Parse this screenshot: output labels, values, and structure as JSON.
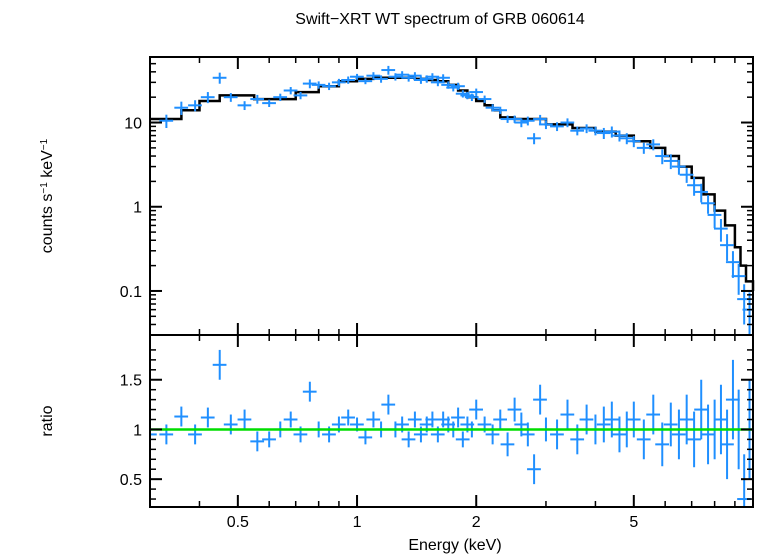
{
  "chart_data": {
    "type": "scatter",
    "title": "Swift−XRT WT spectrum of GRB 060614",
    "xlabel": "Energy (keV)",
    "x_scale": "log",
    "xlim": [
      0.3,
      10
    ],
    "x_ticks": [
      {
        "value": 0.5,
        "label": "0.5"
      },
      {
        "value": 1,
        "label": "1"
      },
      {
        "value": 2,
        "label": "2"
      },
      {
        "value": 5,
        "label": "5"
      }
    ],
    "colors": {
      "data": "#1f8fff",
      "model": "#000000",
      "reference": "#00dd00",
      "axes": "#000000"
    },
    "panels": [
      {
        "id": "spectrum",
        "ylabel_base": "counts s",
        "ylabel_exp1": "−1",
        "ylabel_mid": " keV",
        "ylabel_exp2": "−1",
        "y_scale": "log",
        "ylim": [
          0.03,
          60
        ],
        "y_ticks": [
          {
            "value": 0.1,
            "label": "0.1"
          },
          {
            "value": 1,
            "label": "1"
          },
          {
            "value": 10,
            "label": "10"
          }
        ],
        "model": {
          "name": "model",
          "x": [
            0.3,
            0.33,
            0.36,
            0.4,
            0.45,
            0.5,
            0.55,
            0.6,
            0.7,
            0.8,
            0.9,
            1.0,
            1.1,
            1.2,
            1.3,
            1.4,
            1.5,
            1.6,
            1.7,
            1.8,
            1.9,
            2.0,
            2.1,
            2.2,
            2.3,
            2.5,
            3.0,
            3.5,
            4.0,
            4.5,
            5.0,
            5.5,
            6.0,
            6.5,
            7.0,
            7.5,
            8.0,
            8.5,
            9.0,
            9.3,
            9.6,
            10.0
          ],
          "y": [
            11,
            11,
            14,
            18,
            21,
            21,
            19,
            19,
            23,
            27,
            31,
            33,
            34,
            34,
            34,
            33,
            32,
            31,
            28,
            24,
            20,
            18,
            16,
            14,
            11.5,
            11,
            9.5,
            8.6,
            7.8,
            7.0,
            6.0,
            5.0,
            4.0,
            3.0,
            2.2,
            1.4,
            0.9,
            0.6,
            0.33,
            0.2,
            0.13,
            0.1
          ]
        },
        "series": [
          {
            "name": "data",
            "x": [
              0.3,
              0.33,
              0.36,
              0.39,
              0.42,
              0.45,
              0.48,
              0.52,
              0.56,
              0.6,
              0.64,
              0.68,
              0.72,
              0.76,
              0.8,
              0.85,
              0.9,
              0.95,
              1.0,
              1.05,
              1.1,
              1.15,
              1.2,
              1.25,
              1.3,
              1.35,
              1.4,
              1.45,
              1.5,
              1.55,
              1.6,
              1.65,
              1.7,
              1.75,
              1.8,
              1.85,
              1.9,
              1.95,
              2.0,
              2.1,
              2.2,
              2.3,
              2.4,
              2.5,
              2.6,
              2.7,
              2.8,
              2.9,
              3.0,
              3.2,
              3.4,
              3.6,
              3.8,
              4.0,
              4.2,
              4.4,
              4.6,
              4.8,
              5.0,
              5.3,
              5.6,
              5.9,
              6.2,
              6.5,
              6.8,
              7.1,
              7.4,
              7.7,
              8.0,
              8.3,
              8.6,
              8.9,
              9.2,
              9.5,
              9.8
            ],
            "y": [
              10,
              10.5,
              15,
              16,
              20,
              34,
              20,
              16,
              19,
              17,
              20,
              24,
              21,
              29,
              28,
              27,
              30,
              32,
              35,
              31,
              36,
              33,
              42,
              35,
              37,
              34,
              36,
              32,
              33,
              35,
              30,
              34,
              28,
              26,
              27,
              22,
              21,
              20,
              23,
              19,
              15,
              14,
              11,
              11,
              10,
              10.5,
              6.5,
              11,
              9.5,
              9,
              10,
              8,
              8.5,
              8,
              7.5,
              7.8,
              7,
              6.5,
              6,
              5,
              5.5,
              4,
              3.5,
              3,
              2.4,
              1.8,
              1.5,
              1.1,
              0.8,
              0.55,
              0.35,
              0.22,
              0.15,
              0.08,
              0.06
            ],
            "err": [
              0.2,
              0.18,
              0.18,
              0.15,
              0.15,
              0.15,
              0.12,
              0.12,
              0.12,
              0.1,
              0.1,
              0.1,
              0.1,
              0.12,
              0.1,
              0.1,
              0.1,
              0.1,
              0.08,
              0.08,
              0.1,
              0.1,
              0.12,
              0.1,
              0.1,
              0.1,
              0.1,
              0.1,
              0.1,
              0.1,
              0.1,
              0.1,
              0.1,
              0.1,
              0.1,
              0.1,
              0.1,
              0.1,
              0.1,
              0.1,
              0.1,
              0.1,
              0.1,
              0.1,
              0.12,
              0.12,
              0.15,
              0.12,
              0.12,
              0.12,
              0.12,
              0.12,
              0.12,
              0.12,
              0.15,
              0.15,
              0.15,
              0.15,
              0.15,
              0.15,
              0.15,
              0.2,
              0.2,
              0.2,
              0.2,
              0.25,
              0.25,
              0.25,
              0.3,
              0.3,
              0.35,
              0.35,
              0.4,
              0.5,
              0.6
            ]
          }
        ]
      },
      {
        "id": "ratio",
        "ylabel": "ratio",
        "y_scale": "linear",
        "ylim": [
          0.22,
          1.95
        ],
        "y_ticks": [
          {
            "value": 0.5,
            "label": "0.5"
          },
          {
            "value": 1,
            "label": "1"
          },
          {
            "value": 1.5,
            "label": "1.5"
          }
        ],
        "reference": {
          "name": "unity",
          "y": 1
        },
        "series": [
          {
            "name": "data",
            "x": [
              0.3,
              0.33,
              0.36,
              0.39,
              0.42,
              0.45,
              0.48,
              0.52,
              0.56,
              0.6,
              0.64,
              0.68,
              0.72,
              0.76,
              0.8,
              0.85,
              0.9,
              0.95,
              1.0,
              1.05,
              1.1,
              1.15,
              1.2,
              1.25,
              1.3,
              1.35,
              1.4,
              1.45,
              1.5,
              1.55,
              1.6,
              1.65,
              1.7,
              1.75,
              1.8,
              1.85,
              1.9,
              1.95,
              2.0,
              2.1,
              2.2,
              2.3,
              2.4,
              2.5,
              2.6,
              2.7,
              2.8,
              2.9,
              3.0,
              3.2,
              3.4,
              3.6,
              3.8,
              4.0,
              4.2,
              4.4,
              4.6,
              4.8,
              5.0,
              5.3,
              5.6,
              5.9,
              6.2,
              6.5,
              6.8,
              7.1,
              7.4,
              7.7,
              8.0,
              8.3,
              8.6,
              8.9,
              9.2,
              9.5,
              9.8
            ],
            "y": [
              0.95,
              0.95,
              1.13,
              0.95,
              1.12,
              1.65,
              1.05,
              1.1,
              0.88,
              0.9,
              1.0,
              1.1,
              0.95,
              1.38,
              1.0,
              0.95,
              1.05,
              1.12,
              1.05,
              0.92,
              1.1,
              1.0,
              1.25,
              1.0,
              1.05,
              0.9,
              1.1,
              0.95,
              1.05,
              1.1,
              0.95,
              1.1,
              1.05,
              1.0,
              1.12,
              0.9,
              1.05,
              1.0,
              1.2,
              1.05,
              0.95,
              1.1,
              0.85,
              1.2,
              1.05,
              0.95,
              0.6,
              1.3,
              1.0,
              0.95,
              1.15,
              0.9,
              1.1,
              1.0,
              1.05,
              1.1,
              0.95,
              1.0,
              1.1,
              0.9,
              1.15,
              0.85,
              1.05,
              0.95,
              1.1,
              0.9,
              1.2,
              0.95,
              1.0,
              1.1,
              0.85,
              1.3,
              1.0,
              0.3,
              1.0
            ],
            "err": [
              0.12,
              0.1,
              0.1,
              0.1,
              0.1,
              0.15,
              0.1,
              0.1,
              0.1,
              0.08,
              0.08,
              0.08,
              0.08,
              0.1,
              0.08,
              0.08,
              0.08,
              0.08,
              0.07,
              0.07,
              0.08,
              0.08,
              0.1,
              0.08,
              0.08,
              0.08,
              0.08,
              0.08,
              0.08,
              0.08,
              0.08,
              0.08,
              0.08,
              0.08,
              0.1,
              0.08,
              0.08,
              0.08,
              0.1,
              0.08,
              0.1,
              0.1,
              0.12,
              0.12,
              0.12,
              0.12,
              0.15,
              0.15,
              0.12,
              0.15,
              0.15,
              0.15,
              0.15,
              0.15,
              0.18,
              0.18,
              0.18,
              0.18,
              0.18,
              0.2,
              0.2,
              0.22,
              0.22,
              0.25,
              0.25,
              0.28,
              0.3,
              0.3,
              0.3,
              0.35,
              0.35,
              0.4,
              0.4,
              0.45,
              0.5
            ]
          }
        ]
      }
    ]
  }
}
